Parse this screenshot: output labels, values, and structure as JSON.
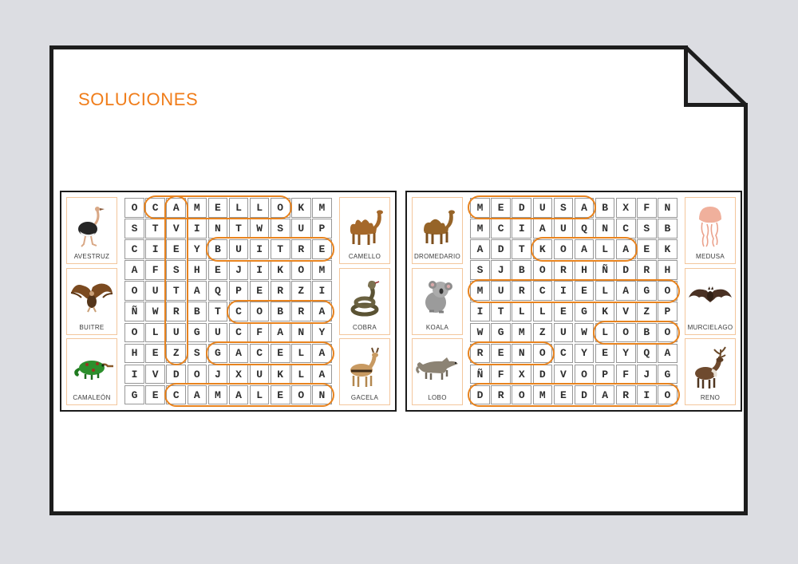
{
  "page": {
    "title": "SOLUCIONES"
  },
  "colors": {
    "background": "#dcdde2",
    "page_border": "#1d1d1d",
    "accent_orange": "#f07d1a",
    "circle_orange": "#e8831e",
    "card_border": "#f3c69c",
    "grid_line": "#979797",
    "letter": "#2e2e2e"
  },
  "puzzles": [
    {
      "left_cards": [
        {
          "label": "AVESTRUZ",
          "icon": "ostrich-icon"
        },
        {
          "label": "BUITRE",
          "icon": "vulture-icon"
        },
        {
          "label": "CAMALEÓN",
          "icon": "chameleon-icon"
        }
      ],
      "right_cards": [
        {
          "label": "CAMELLO",
          "icon": "camel-icon"
        },
        {
          "label": "COBRA",
          "icon": "cobra-icon"
        },
        {
          "label": "GACELA",
          "icon": "gazelle-icon"
        }
      ],
      "grid": [
        "OCAMELLOKM",
        "STVINTWSUP",
        "CIEYBUITRE",
        "AFSHEJIKOM",
        "OUTAQPERZI",
        "ÑWRBTCOBRA",
        "OLUGUCFANY",
        "HEZSGACELA",
        "IVDOJXUKLA",
        "GECAMALEON"
      ],
      "solutions": [
        {
          "word": "CAMELLO",
          "row": 1,
          "col": 2,
          "len": 7,
          "dir": "h"
        },
        {
          "word": "AVESTRUZ",
          "row": 1,
          "col": 3,
          "len": 8,
          "dir": "v"
        },
        {
          "word": "BUITRE",
          "row": 3,
          "col": 5,
          "len": 6,
          "dir": "h"
        },
        {
          "word": "COBRA",
          "row": 6,
          "col": 6,
          "len": 5,
          "dir": "h"
        },
        {
          "word": "GACELA",
          "row": 8,
          "col": 5,
          "len": 6,
          "dir": "h"
        },
        {
          "word": "CAMALEON",
          "row": 10,
          "col": 3,
          "len": 8,
          "dir": "h"
        }
      ]
    },
    {
      "left_cards": [
        {
          "label": "DROMEDARIO",
          "icon": "dromedary-icon"
        },
        {
          "label": "KOALA",
          "icon": "koala-icon"
        },
        {
          "label": "LOBO",
          "icon": "wolf-icon"
        }
      ],
      "right_cards": [
        {
          "label": "MEDUSA",
          "icon": "jellyfish-icon"
        },
        {
          "label": "MURCIELAGO",
          "icon": "bat-icon"
        },
        {
          "label": "RENO",
          "icon": "reindeer-icon"
        }
      ],
      "grid": [
        "MEDUSABXFN",
        "MCIAUQNCSB",
        "ADTKOALAEK",
        "SJBORHÑDRH",
        "MURCIELAGO",
        "ITLLEGKVZP",
        "WGMZUWLOBO",
        "RENOCYEYQA",
        "ÑFXDVOPFJG",
        "DROMEDARIO"
      ],
      "solutions": [
        {
          "word": "MEDUSA",
          "row": 1,
          "col": 1,
          "len": 6,
          "dir": "h"
        },
        {
          "word": "KOALA",
          "row": 3,
          "col": 4,
          "len": 5,
          "dir": "h"
        },
        {
          "word": "MURCIELAGO",
          "row": 5,
          "col": 1,
          "len": 10,
          "dir": "h"
        },
        {
          "word": "LOBO",
          "row": 7,
          "col": 7,
          "len": 4,
          "dir": "h"
        },
        {
          "word": "RENO",
          "row": 8,
          "col": 1,
          "len": 4,
          "dir": "h"
        },
        {
          "word": "DROMEDARIO",
          "row": 10,
          "col": 1,
          "len": 10,
          "dir": "h"
        }
      ]
    }
  ]
}
